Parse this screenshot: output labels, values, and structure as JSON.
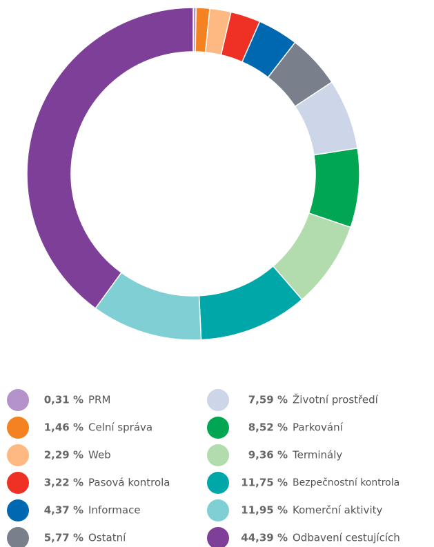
{
  "chart_data": {
    "type": "pie",
    "categories": [
      "PRM",
      "Celní správa",
      "Web",
      "Pasová kontrola",
      "Informace",
      "Ostatní",
      "Životní prostředí",
      "Parkování",
      "Terminály",
      "Bezpečnostní kontrola",
      "Komerční aktivity",
      "Odbavení cestujících"
    ],
    "values": [
      0.31,
      1.46,
      2.29,
      3.22,
      4.37,
      5.77,
      7.59,
      8.52,
      9.36,
      11.75,
      11.95,
      44.39
    ],
    "value_labels": [
      "0,31 %",
      "1,46 %",
      "2,29 %",
      "3,22 %",
      "4,37 %",
      "5,77 %",
      "7,59 %",
      "8,52 %",
      "9,36 %",
      "11,75 %",
      "11,95 %",
      "44,39 %"
    ],
    "colors": [
      "#b393c9",
      "#f58220",
      "#fdb981",
      "#ee3124",
      "#0067b1",
      "#7a7f8c",
      "#cdd6e8",
      "#00a651",
      "#b2dbae",
      "#00a7a8",
      "#7fcfd4",
      "#7e3f98"
    ]
  }
}
